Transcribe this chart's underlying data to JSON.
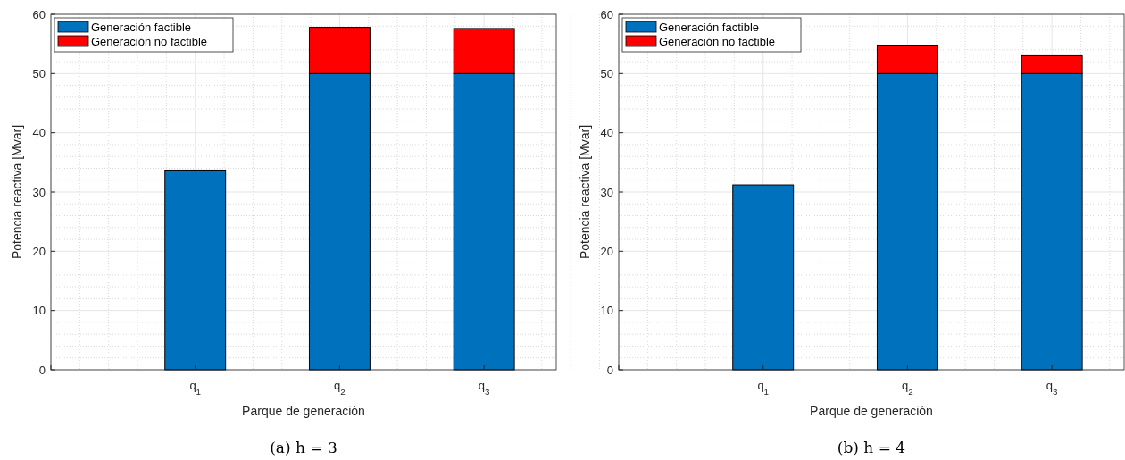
{
  "chart_data": [
    {
      "type": "bar",
      "title": "(a) h = 3",
      "xlabel": "Parque de generación",
      "ylabel": "Potencia reactiva [Mvar]",
      "categories": [
        null,
        "q$_{1}$",
        "q$_{2}$",
        "q$_{3}$"
      ],
      "stacked": true,
      "ylim": [
        0,
        60
      ],
      "yticks": [
        0,
        10,
        20,
        30,
        40,
        50,
        60
      ],
      "grid": true,
      "legend": "top left",
      "series": [
        {
          "name": "Generación factible",
          "color": "#0072bd",
          "values": [
            null,
            33.7,
            50,
            50
          ]
        },
        {
          "name": "Generación no factible",
          "color": "#ff0000",
          "values": [
            null,
            null,
            7.8,
            7.6
          ]
        }
      ]
    },
    {
      "type": "bar",
      "title": "(b) h = 4",
      "xlabel": "Parque de generación",
      "ylabel": "Potencia reactiva [Mvar]",
      "categories": [
        null,
        "q$_{1}$",
        "q$_{2}$",
        "q$_{3}$"
      ],
      "stacked": true,
      "ylim": [
        0,
        60
      ],
      "yticks": [
        0,
        10,
        20,
        30,
        40,
        50,
        60
      ],
      "grid": true,
      "legend": "top left",
      "series": [
        {
          "name": "Generación factible",
          "color": "#0072bd",
          "values": [
            null,
            31.2,
            50,
            50
          ]
        },
        {
          "name": "Generación no factible",
          "color": "#ff0000",
          "values": [
            null,
            null,
            4.8,
            3.0
          ]
        }
      ]
    }
  ]
}
